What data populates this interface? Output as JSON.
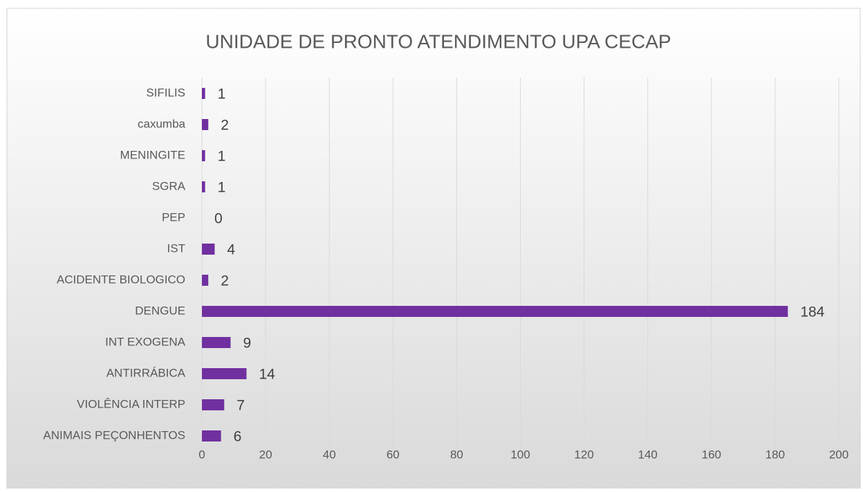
{
  "chart_data": {
    "type": "bar",
    "orientation": "horizontal",
    "title": "UNIDADE DE PRONTO ATENDIMENTO UPA CECAP",
    "categories": [
      "SIFILIS",
      "caxumba",
      "MENINGITE",
      "SGRA",
      "PEP",
      "IST",
      "ACIDENTE BIOLOGICO",
      "DENGUE",
      "INT EXOGENA",
      "ANTIRRÁBICA",
      "VIOLÊNCIA INTERP",
      "ANIMAIS PEÇONHENTOS"
    ],
    "values": [
      1,
      2,
      1,
      1,
      0,
      4,
      2,
      184,
      9,
      14,
      7,
      6
    ],
    "color": "#7030a0",
    "xlim": [
      0,
      200
    ],
    "xticks": [
      0,
      20,
      40,
      60,
      80,
      100,
      120,
      140,
      160,
      180,
      200
    ],
    "grid": true
  }
}
